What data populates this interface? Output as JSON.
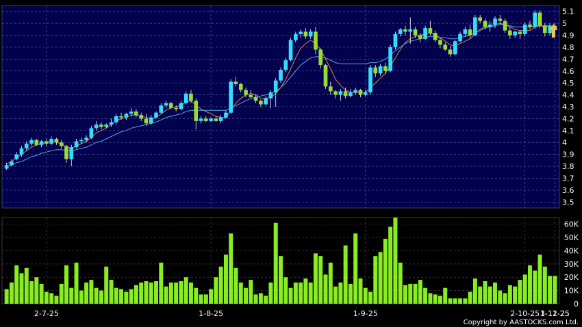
{
  "chart_data": {
    "type": "candlestick",
    "price_axis": {
      "ticks": [
        "5.1",
        "5",
        "4.9",
        "4.8",
        "4.7",
        "4.6",
        "4.5",
        "4.4",
        "4.3",
        "4.2",
        "4.1",
        "4",
        "3.9",
        "3.8",
        "3.7",
        "3.6",
        "3.5"
      ],
      "ylim": [
        3.45,
        5.15
      ]
    },
    "volume_axis": {
      "ticks": [
        "60K",
        "50K",
        "40K",
        "30K",
        "20K",
        "10K",
        "0"
      ],
      "ylim": [
        0,
        65000
      ]
    },
    "x_labels": [
      "2-7-25",
      "1-8-25",
      "1-9-25",
      "2-10-25",
      "3-11-25",
      "1-12-25"
    ],
    "grid": true,
    "series": [
      {
        "name": "",
        "type": "candles",
        "ohlc": [
          [
            3.78,
            3.83,
            3.77,
            3.81
          ],
          [
            3.81,
            3.86,
            3.8,
            3.84
          ],
          [
            3.86,
            3.92,
            3.85,
            3.9
          ],
          [
            3.9,
            3.97,
            3.88,
            3.95
          ],
          [
            3.95,
            4.01,
            3.93,
            3.99
          ],
          [
            3.99,
            4.04,
            3.97,
            4.02
          ],
          [
            4.02,
            4.03,
            3.97,
            3.98
          ],
          [
            3.98,
            4.02,
            3.96,
            4.01
          ],
          [
            4.01,
            4.03,
            3.97,
            3.99
          ],
          [
            3.99,
            4.05,
            3.98,
            4.03
          ],
          [
            4.03,
            4.04,
            3.98,
            4.0
          ],
          [
            4.0,
            4.02,
            3.95,
            3.97
          ],
          [
            3.97,
            3.98,
            3.83,
            3.86
          ],
          [
            3.86,
            3.98,
            3.8,
            3.96
          ],
          [
            3.96,
            4.03,
            3.95,
            4.01
          ],
          [
            4.01,
            4.04,
            3.99,
            4.02
          ],
          [
            4.02,
            4.06,
            4.0,
            4.04
          ],
          [
            4.04,
            4.14,
            4.03,
            4.12
          ],
          [
            4.12,
            4.18,
            4.1,
            4.15
          ],
          [
            4.15,
            4.17,
            4.11,
            4.13
          ],
          [
            4.13,
            4.16,
            4.12,
            4.15
          ],
          [
            4.15,
            4.2,
            4.13,
            4.17
          ],
          [
            4.17,
            4.24,
            4.15,
            4.22
          ],
          [
            4.22,
            4.25,
            4.19,
            4.21
          ],
          [
            4.21,
            4.25,
            4.19,
            4.24
          ],
          [
            4.24,
            4.29,
            4.22,
            4.26
          ],
          [
            4.26,
            4.28,
            4.21,
            4.23
          ],
          [
            4.23,
            4.25,
            4.18,
            4.2
          ],
          [
            4.2,
            4.24,
            4.14,
            4.16
          ],
          [
            4.16,
            4.23,
            4.15,
            4.21
          ],
          [
            4.21,
            4.26,
            4.2,
            4.25
          ],
          [
            4.25,
            4.33,
            4.24,
            4.31
          ],
          [
            4.31,
            4.35,
            4.29,
            4.33
          ],
          [
            4.33,
            4.34,
            4.28,
            4.29
          ],
          [
            4.29,
            4.31,
            4.26,
            4.28
          ],
          [
            4.28,
            4.35,
            4.27,
            4.33
          ],
          [
            4.33,
            4.43,
            4.32,
            4.41
          ],
          [
            4.41,
            4.44,
            4.33,
            4.35
          ],
          [
            4.35,
            4.37,
            4.11,
            4.18
          ],
          [
            4.18,
            4.22,
            4.16,
            4.2
          ],
          [
            4.2,
            4.22,
            4.17,
            4.18
          ],
          [
            4.18,
            4.21,
            4.17,
            4.2
          ],
          [
            4.2,
            4.22,
            4.17,
            4.18
          ],
          [
            4.18,
            4.23,
            4.16,
            4.21
          ],
          [
            4.21,
            4.27,
            4.2,
            4.25
          ],
          [
            4.25,
            4.53,
            4.24,
            4.51
          ],
          [
            4.51,
            4.55,
            4.47,
            4.49
          ],
          [
            4.49,
            4.5,
            4.42,
            4.44
          ],
          [
            4.44,
            4.46,
            4.38,
            4.4
          ],
          [
            4.4,
            4.44,
            4.37,
            4.38
          ],
          [
            4.38,
            4.4,
            4.33,
            4.35
          ],
          [
            4.35,
            4.36,
            4.3,
            4.32
          ],
          [
            4.32,
            4.39,
            4.31,
            4.37
          ],
          [
            4.37,
            4.44,
            4.29,
            4.42
          ],
          [
            4.42,
            4.54,
            4.3,
            4.52
          ],
          [
            4.52,
            4.63,
            4.5,
            4.61
          ],
          [
            4.61,
            4.71,
            4.59,
            4.69
          ],
          [
            4.69,
            4.88,
            4.68,
            4.86
          ],
          [
            4.86,
            4.93,
            4.84,
            4.91
          ],
          [
            4.91,
            4.95,
            4.88,
            4.93
          ],
          [
            4.93,
            4.96,
            4.87,
            4.89
          ],
          [
            4.89,
            4.95,
            4.87,
            4.93
          ],
          [
            4.93,
            4.97,
            4.74,
            4.78
          ],
          [
            4.78,
            4.79,
            4.62,
            4.65
          ],
          [
            4.65,
            4.66,
            4.45,
            4.47
          ],
          [
            4.47,
            4.51,
            4.4,
            4.43
          ],
          [
            4.43,
            4.44,
            4.37,
            4.4
          ],
          [
            4.4,
            4.45,
            4.35,
            4.43
          ],
          [
            4.43,
            4.46,
            4.37,
            4.39
          ],
          [
            4.39,
            4.45,
            4.38,
            4.42
          ],
          [
            4.42,
            4.46,
            4.4,
            4.44
          ],
          [
            4.44,
            4.45,
            4.38,
            4.4
          ],
          [
            4.4,
            4.44,
            4.39,
            4.42
          ],
          [
            4.42,
            4.65,
            4.4,
            4.63
          ],
          [
            4.63,
            4.65,
            4.55,
            4.58
          ],
          [
            4.58,
            4.66,
            4.56,
            4.64
          ],
          [
            4.64,
            4.67,
            4.58,
            4.6
          ],
          [
            4.6,
            4.82,
            4.59,
            4.8
          ],
          [
            4.8,
            4.93,
            4.78,
            4.91
          ],
          [
            4.91,
            4.96,
            4.89,
            4.95
          ],
          [
            4.95,
            4.98,
            4.9,
            4.93
          ],
          [
            4.93,
            5.05,
            4.83,
            4.95
          ],
          [
            4.95,
            4.97,
            4.88,
            4.9
          ],
          [
            4.9,
            4.92,
            4.84,
            4.87
          ],
          [
            4.87,
            4.98,
            4.86,
            4.96
          ],
          [
            4.96,
            5.02,
            4.9,
            4.92
          ],
          [
            4.92,
            4.94,
            4.84,
            4.86
          ],
          [
            4.86,
            4.88,
            4.79,
            4.82
          ],
          [
            4.82,
            4.84,
            4.77,
            4.78
          ],
          [
            4.78,
            4.81,
            4.72,
            4.74
          ],
          [
            4.74,
            4.86,
            4.73,
            4.85
          ],
          [
            4.85,
            4.93,
            4.84,
            4.91
          ],
          [
            4.91,
            4.97,
            4.89,
            4.95
          ],
          [
            4.95,
            4.99,
            4.87,
            4.9
          ],
          [
            4.9,
            5.07,
            4.89,
            5.05
          ],
          [
            5.05,
            5.07,
            5.0,
            5.02
          ],
          [
            5.02,
            5.04,
            4.95,
            4.97
          ],
          [
            4.97,
            5.02,
            4.93,
            4.99
          ],
          [
            4.99,
            5.06,
            4.96,
            5.04
          ],
          [
            5.04,
            5.07,
            4.99,
            5.02
          ],
          [
            5.02,
            5.04,
            4.92,
            4.94
          ],
          [
            4.94,
            4.97,
            4.87,
            4.9
          ],
          [
            4.9,
            4.94,
            4.88,
            4.93
          ],
          [
            4.93,
            4.94,
            4.87,
            4.91
          ],
          [
            4.91,
            5.01,
            4.89,
            4.99
          ],
          [
            4.99,
            5.02,
            4.95,
            4.97
          ],
          [
            4.97,
            5.11,
            4.95,
            5.09
          ],
          [
            5.09,
            5.11,
            4.96,
            4.98
          ],
          [
            4.98,
            5.0,
            4.89,
            4.92
          ],
          [
            4.92,
            5.0,
            4.9,
            4.98
          ],
          [
            4.98,
            5.0,
            4.88,
            4.95
          ]
        ]
      },
      {
        "name": "",
        "type": "line",
        "color": "#e08a3c",
        "values": [
          3.82,
          3.84,
          3.87,
          3.9,
          3.93,
          3.96,
          3.98,
          3.99,
          4.0,
          4.01,
          4.0,
          3.99,
          3.96,
          3.95,
          3.97,
          3.99,
          4.01,
          4.04,
          4.08,
          4.1,
          4.12,
          4.15,
          4.18,
          4.2,
          4.21,
          4.23,
          4.23,
          4.22,
          4.21,
          4.2,
          4.21,
          4.24,
          4.27,
          4.29,
          4.3,
          4.31,
          4.34,
          4.35,
          4.31,
          4.28,
          4.26,
          4.24,
          4.22,
          4.21,
          4.21,
          4.27,
          4.33,
          4.37,
          4.4,
          4.41,
          4.4,
          4.37,
          4.37,
          4.38,
          4.41,
          4.46,
          4.53,
          4.62,
          4.71,
          4.79,
          4.83,
          4.86,
          4.83,
          4.78,
          4.7,
          4.62,
          4.53,
          4.48,
          4.44,
          4.42,
          4.42,
          4.42,
          4.42,
          4.46,
          4.5,
          4.54,
          4.58,
          4.64,
          4.71,
          4.78,
          4.84,
          4.87,
          4.89,
          4.9,
          4.91,
          4.92,
          4.9,
          4.88,
          4.85,
          4.82,
          4.81,
          4.83,
          4.85,
          4.87,
          4.91,
          4.95,
          4.97,
          4.98,
          4.99,
          5.0,
          4.99,
          4.97,
          4.95,
          4.94,
          4.94,
          4.94,
          4.97,
          4.98,
          4.97,
          4.97,
          4.96
        ]
      },
      {
        "name": "",
        "type": "line",
        "color": "#59a9e3",
        "values": [
          3.8,
          3.81,
          3.83,
          3.84,
          3.86,
          3.88,
          3.89,
          3.91,
          3.92,
          3.93,
          3.94,
          3.94,
          3.93,
          3.93,
          3.94,
          3.95,
          3.96,
          3.98,
          4.0,
          4.01,
          4.03,
          4.05,
          4.07,
          4.09,
          4.1,
          4.12,
          4.13,
          4.14,
          4.15,
          4.16,
          4.17,
          4.19,
          4.21,
          4.22,
          4.23,
          4.24,
          4.26,
          4.27,
          4.27,
          4.27,
          4.27,
          4.27,
          4.27,
          4.27,
          4.27,
          4.29,
          4.31,
          4.33,
          4.35,
          4.37,
          4.38,
          4.39,
          4.4,
          4.41,
          4.43,
          4.46,
          4.5,
          4.55,
          4.6,
          4.65,
          4.68,
          4.71,
          4.72,
          4.72,
          4.71,
          4.69,
          4.67,
          4.66,
          4.66,
          4.66,
          4.66,
          4.66,
          4.66,
          4.67,
          4.67,
          4.68,
          4.7,
          4.73,
          4.77,
          4.8,
          4.83,
          4.85,
          4.86,
          4.87,
          4.88,
          4.89,
          4.89,
          4.88,
          4.88,
          4.87,
          4.87,
          4.88,
          4.89,
          4.9,
          4.92,
          4.94,
          4.96,
          4.97,
          4.98,
          4.99,
          4.99,
          4.98,
          4.97,
          4.97,
          4.97,
          4.97,
          4.98,
          4.98,
          4.98,
          4.98,
          4.97
        ]
      }
    ],
    "volume": [
      11000,
      16000,
      29000,
      23000,
      27000,
      17000,
      20000,
      15000,
      9000,
      8000,
      6000,
      15000,
      29000,
      12000,
      31000,
      10000,
      16000,
      18000,
      12000,
      10000,
      28000,
      18000,
      12000,
      11000,
      9000,
      11000,
      14000,
      16000,
      17000,
      16000,
      17000,
      31000,
      13000,
      16000,
      16000,
      17000,
      20000,
      16000,
      12000,
      7000,
      7000,
      11000,
      20000,
      28000,
      37000,
      53000,
      27000,
      16000,
      12000,
      18000,
      7000,
      8000,
      6000,
      16000,
      61000,
      36000,
      20000,
      12000,
      16000,
      16000,
      19000,
      16000,
      38000,
      36000,
      22000,
      31000,
      13000,
      16000,
      44000,
      15000,
      53000,
      19000,
      12000,
      9000,
      36000,
      39000,
      49000,
      58000,
      65000,
      31000,
      14000,
      15000,
      15000,
      18000,
      12000,
      8000,
      7000,
      6000,
      12000,
      4000,
      4000,
      4000,
      4000,
      9000,
      19000,
      13000,
      17000,
      13000,
      16000,
      10000,
      8000,
      14000,
      13000,
      18000,
      22000,
      29000,
      25000,
      37000,
      28000,
      21000,
      21000,
      12000
    ],
    "arrow_color": "#f5c242",
    "copyright": "Copyright by AASTOCKS.com Ltd."
  }
}
